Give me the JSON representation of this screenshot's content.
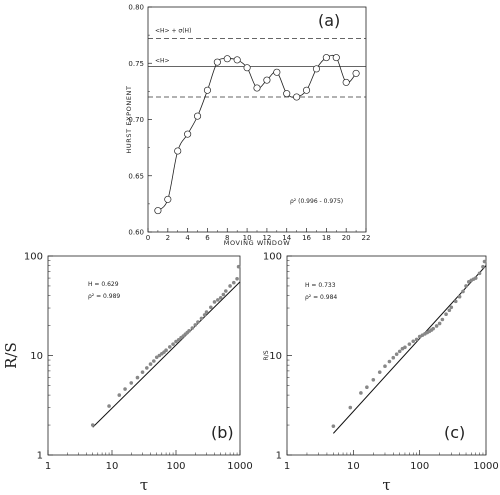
{
  "chart_data": [
    {
      "type": "line",
      "panel_label": "(a)",
      "xlabel": "MOVING WINDOW",
      "ylabel": "HURST EXPONENT",
      "xlim": [
        0,
        22
      ],
      "ylim": [
        0.6,
        0.8
      ],
      "xticks": [
        "0",
        "2",
        "4",
        "6",
        "8",
        "10",
        "12",
        "14",
        "16",
        "18",
        "20",
        "22"
      ],
      "yticks": [
        "0.60",
        "0.65",
        "0.70",
        "0.75",
        "0.80"
      ],
      "x": [
        1,
        2,
        3,
        4,
        5,
        6,
        7,
        8,
        9,
        10,
        11,
        12,
        13,
        14,
        15,
        16,
        17,
        18,
        19,
        20,
        21
      ],
      "y": [
        0.619,
        0.629,
        0.672,
        0.687,
        0.703,
        0.726,
        0.751,
        0.754,
        0.753,
        0.746,
        0.728,
        0.735,
        0.742,
        0.723,
        0.72,
        0.726,
        0.745,
        0.755,
        0.755,
        0.733,
        0.741
      ],
      "mean_line": {
        "label": "<H>",
        "value": 0.747
      },
      "sigma_lines": {
        "label": "<H> + σ(H)",
        "upper": 0.772,
        "lower": 0.72
      },
      "annotation": "ρ² (0.996 - 0.975)",
      "grid": false
    },
    {
      "type": "scatter",
      "panel_label": "(b)",
      "xlabel": "τ",
      "ylabel": "R/S",
      "scale": "log-log",
      "xlim": [
        1,
        1000
      ],
      "ylim": [
        1,
        100
      ],
      "xticks": [
        "1",
        "10",
        "100",
        "1000"
      ],
      "yticks": [
        "1",
        "10",
        "100"
      ],
      "annotation_h": "H = 0.629",
      "annotation_rho": "ρ² = 0.989",
      "points_x": [
        5,
        9,
        13,
        16,
        20,
        25,
        30,
        35,
        40,
        45,
        50,
        55,
        60,
        65,
        70,
        80,
        90,
        100,
        110,
        120,
        130,
        140,
        150,
        160,
        180,
        200,
        220,
        250,
        280,
        300,
        350,
        400,
        450,
        500,
        550,
        600,
        700,
        800,
        900,
        950
      ],
      "points_y": [
        2.0,
        3.1,
        4.0,
        4.6,
        5.3,
        6.0,
        6.8,
        7.5,
        8.2,
        8.8,
        9.6,
        10.0,
        10.4,
        10.8,
        11.3,
        12.2,
        13.0,
        13.8,
        14.4,
        15.1,
        15.7,
        16.4,
        17.0,
        17.7,
        18.9,
        20.3,
        21.7,
        23.6,
        25.6,
        27.3,
        30.5,
        34.5,
        36.2,
        38.0,
        41.0,
        44.5,
        50.0,
        54.0,
        59.0,
        78.0
      ],
      "fit_line": {
        "x": [
          5,
          1000
        ],
        "y": [
          1.9,
          55.0
        ]
      }
    },
    {
      "type": "scatter",
      "panel_label": "(c)",
      "xlabel": "τ",
      "ylabel": "R/S",
      "scale": "log-log",
      "xlim": [
        1,
        1000
      ],
      "ylim": [
        1,
        100
      ],
      "xticks": [
        "1",
        "10",
        "100",
        "1000"
      ],
      "yticks": [
        "1",
        "10",
        "100"
      ],
      "annotation_h": "H = 0.733",
      "annotation_rho": "ρ² = 0.984",
      "points_x": [
        5,
        9,
        13,
        16,
        20,
        25,
        30,
        35,
        40,
        45,
        50,
        55,
        60,
        70,
        80,
        90,
        100,
        110,
        120,
        130,
        140,
        150,
        160,
        180,
        200,
        220,
        250,
        280,
        300,
        350,
        400,
        450,
        500,
        550,
        600,
        650,
        700,
        800,
        900,
        950
      ],
      "points_y": [
        1.95,
        3.0,
        4.2,
        4.8,
        5.7,
        6.8,
        7.8,
        8.7,
        9.5,
        10.3,
        11.0,
        11.7,
        12.1,
        13.0,
        13.9,
        14.5,
        15.5,
        16.0,
        16.5,
        17.0,
        17.5,
        18.0,
        18.6,
        19.8,
        21.0,
        23.0,
        26.0,
        28.5,
        30.5,
        35.0,
        39.0,
        44.0,
        50.0,
        55.0,
        57.0,
        58.5,
        60.0,
        67.0,
        78.0,
        88.0
      ],
      "fit_line": {
        "x": [
          5,
          1000
        ],
        "y": [
          1.65,
          80.0
        ]
      }
    }
  ]
}
